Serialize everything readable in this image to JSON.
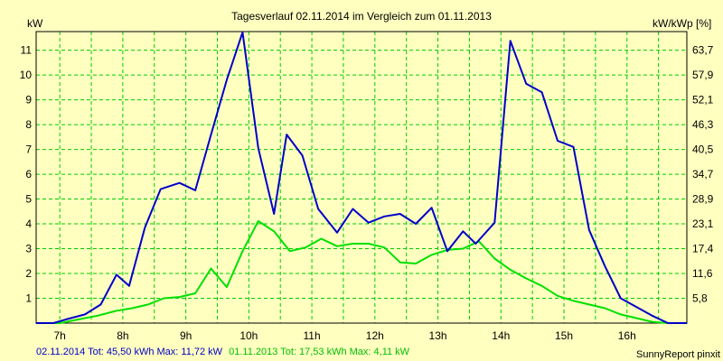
{
  "chart_data": {
    "type": "line",
    "title": "Tagesverlauf 02.11.2014 im Vergleich zum 01.11.2013",
    "ylabel_left": "kW",
    "ylabel_right": "kW/kWp [%]",
    "xlim": [
      6.625,
      16.95
    ],
    "ylim": [
      0,
      11.75
    ],
    "grid": true,
    "x_tick_labels": [
      {
        "x": 7,
        "label": "7h"
      },
      {
        "x": 8,
        "label": "8h"
      },
      {
        "x": 9,
        "label": "9h"
      },
      {
        "x": 10,
        "label": "10h"
      },
      {
        "x": 11,
        "label": "11h"
      },
      {
        "x": 12,
        "label": "12h"
      },
      {
        "x": 13,
        "label": "13h"
      },
      {
        "x": 14,
        "label": "14h"
      },
      {
        "x": 15,
        "label": "15h"
      },
      {
        "x": 16,
        "label": "16h"
      }
    ],
    "y_ticks_left": [
      1,
      2,
      3,
      4,
      5,
      6,
      7,
      8,
      9,
      10,
      11
    ],
    "y_ticks_right": [
      {
        "y": 1,
        "label": "5,8"
      },
      {
        "y": 2,
        "label": "11,6"
      },
      {
        "y": 3,
        "label": "17,4"
      },
      {
        "y": 4,
        "label": "23,1"
      },
      {
        "y": 5,
        "label": "28,9"
      },
      {
        "y": 6,
        "label": "34,7"
      },
      {
        "y": 7,
        "label": "40,5"
      },
      {
        "y": 8,
        "label": "46,3"
      },
      {
        "y": 9,
        "label": "52,1"
      },
      {
        "y": 10,
        "label": "57,9"
      },
      {
        "y": 11,
        "label": "63,7"
      }
    ],
    "series": [
      {
        "color": "#0000c8",
        "x": [
          6.625,
          6.9,
          7.1,
          7.4,
          7.65,
          7.9,
          8.1,
          8.35,
          8.6,
          8.9,
          9.15,
          9.4,
          9.65,
          9.9,
          10.15,
          10.4,
          10.6,
          10.85,
          11.1,
          11.4,
          11.65,
          11.9,
          12.15,
          12.4,
          12.65,
          12.9,
          13.15,
          13.4,
          13.6,
          13.9,
          14.15,
          14.4,
          14.65,
          14.9,
          15.15,
          15.4,
          15.65,
          15.9,
          16.15,
          16.4,
          16.65,
          16.95
        ],
        "y": [
          0,
          0,
          0.15,
          0.35,
          0.75,
          1.95,
          1.5,
          3.85,
          5.4,
          5.65,
          5.35,
          7.6,
          9.8,
          11.72,
          7.05,
          4.4,
          7.6,
          6.75,
          4.6,
          3.65,
          4.6,
          4.05,
          4.3,
          4.4,
          4.0,
          4.65,
          2.9,
          3.7,
          3.2,
          4.05,
          11.38,
          9.65,
          9.3,
          7.35,
          7.1,
          3.75,
          2.3,
          1.0,
          0.65,
          0.3,
          0,
          0
        ]
      },
      {
        "color": "#00e000",
        "x": [
          6.625,
          7.0,
          7.3,
          7.6,
          7.9,
          8.15,
          8.4,
          8.65,
          8.9,
          9.15,
          9.4,
          9.65,
          9.9,
          10.15,
          10.4,
          10.65,
          10.9,
          11.15,
          11.4,
          11.65,
          11.9,
          12.15,
          12.4,
          12.65,
          12.9,
          13.15,
          13.4,
          13.65,
          13.9,
          14.15,
          14.4,
          14.65,
          14.9,
          15.15,
          15.4,
          15.65,
          15.9,
          16.15,
          16.4,
          16.65,
          16.95
        ],
        "y": [
          0,
          0,
          0.15,
          0.3,
          0.5,
          0.6,
          0.75,
          1.0,
          1.05,
          1.2,
          2.2,
          1.45,
          2.9,
          4.11,
          3.7,
          2.9,
          3.05,
          3.4,
          3.1,
          3.2,
          3.2,
          3.05,
          2.45,
          2.4,
          2.75,
          2.95,
          3.0,
          3.3,
          2.6,
          2.15,
          1.8,
          1.5,
          1.1,
          0.9,
          0.75,
          0.6,
          0.35,
          0.2,
          0.05,
          0,
          0
        ]
      }
    ]
  },
  "footer": {
    "series1_summary": "02.11.2014 Tot: 45,50 kWh Max: 11,72 kW",
    "series2_summary": "01.11.2013 Tot: 17,53 kWh Max: 4,11 kW",
    "credit": "SunnyReport pinxit"
  },
  "colors": {
    "background": "#ffffc0",
    "grid": "#00cc00",
    "series1": "#0000c8",
    "series2": "#00e000"
  }
}
